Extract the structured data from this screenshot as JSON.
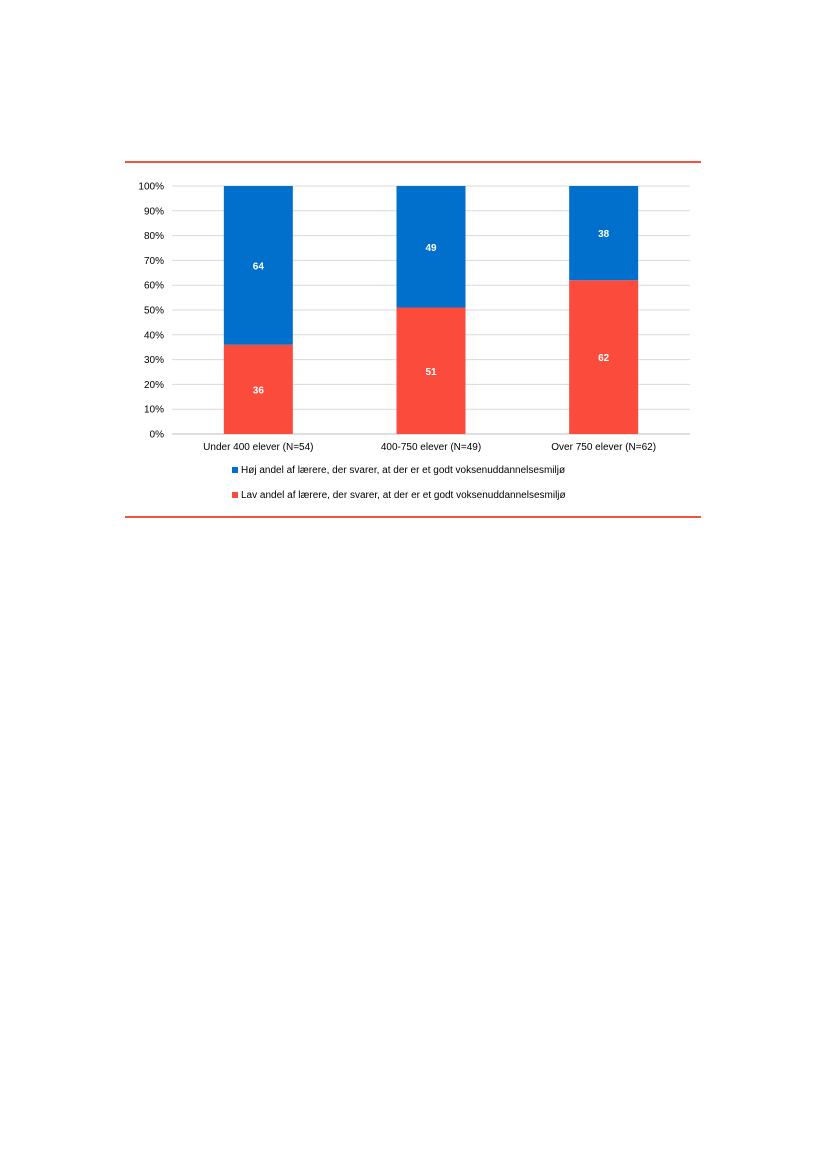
{
  "colors": {
    "rule": "#f4513e",
    "high": "#0070cc",
    "low": "#fb4b3c",
    "grid": "#d9d9d9",
    "axis": "#bfbfbf"
  },
  "chart_data": {
    "type": "bar",
    "stacked": true,
    "categories": [
      "Under 400 elever (N=54)",
      "400-750 elever (N=49)",
      "Over 750 elever (N=62)"
    ],
    "series": [
      {
        "name": "Lav andel af lærere, der svarer, at der er et godt voksenuddannelsesmiljø",
        "values": [
          36,
          51,
          62
        ],
        "color": "#fb4b3c"
      },
      {
        "name": "Høj andel af lærere, der svarer, at der er et godt voksenuddannelsesmiljø",
        "values": [
          64,
          49,
          38
        ],
        "color": "#0070cc"
      }
    ],
    "y_ticks": [
      "0%",
      "10%",
      "20%",
      "30%",
      "40%",
      "50%",
      "60%",
      "70%",
      "80%",
      "90%",
      "100%"
    ],
    "ylim": [
      0,
      100
    ],
    "grid": true,
    "legend_position": "bottom"
  },
  "legend": {
    "high_label": "Høj andel af lærere, der svarer, at der er et godt voksenuddannelsesmiljø",
    "low_label": "Lav andel af lærere, der svarer, at der er et godt voksenuddannelsesmiljø"
  }
}
